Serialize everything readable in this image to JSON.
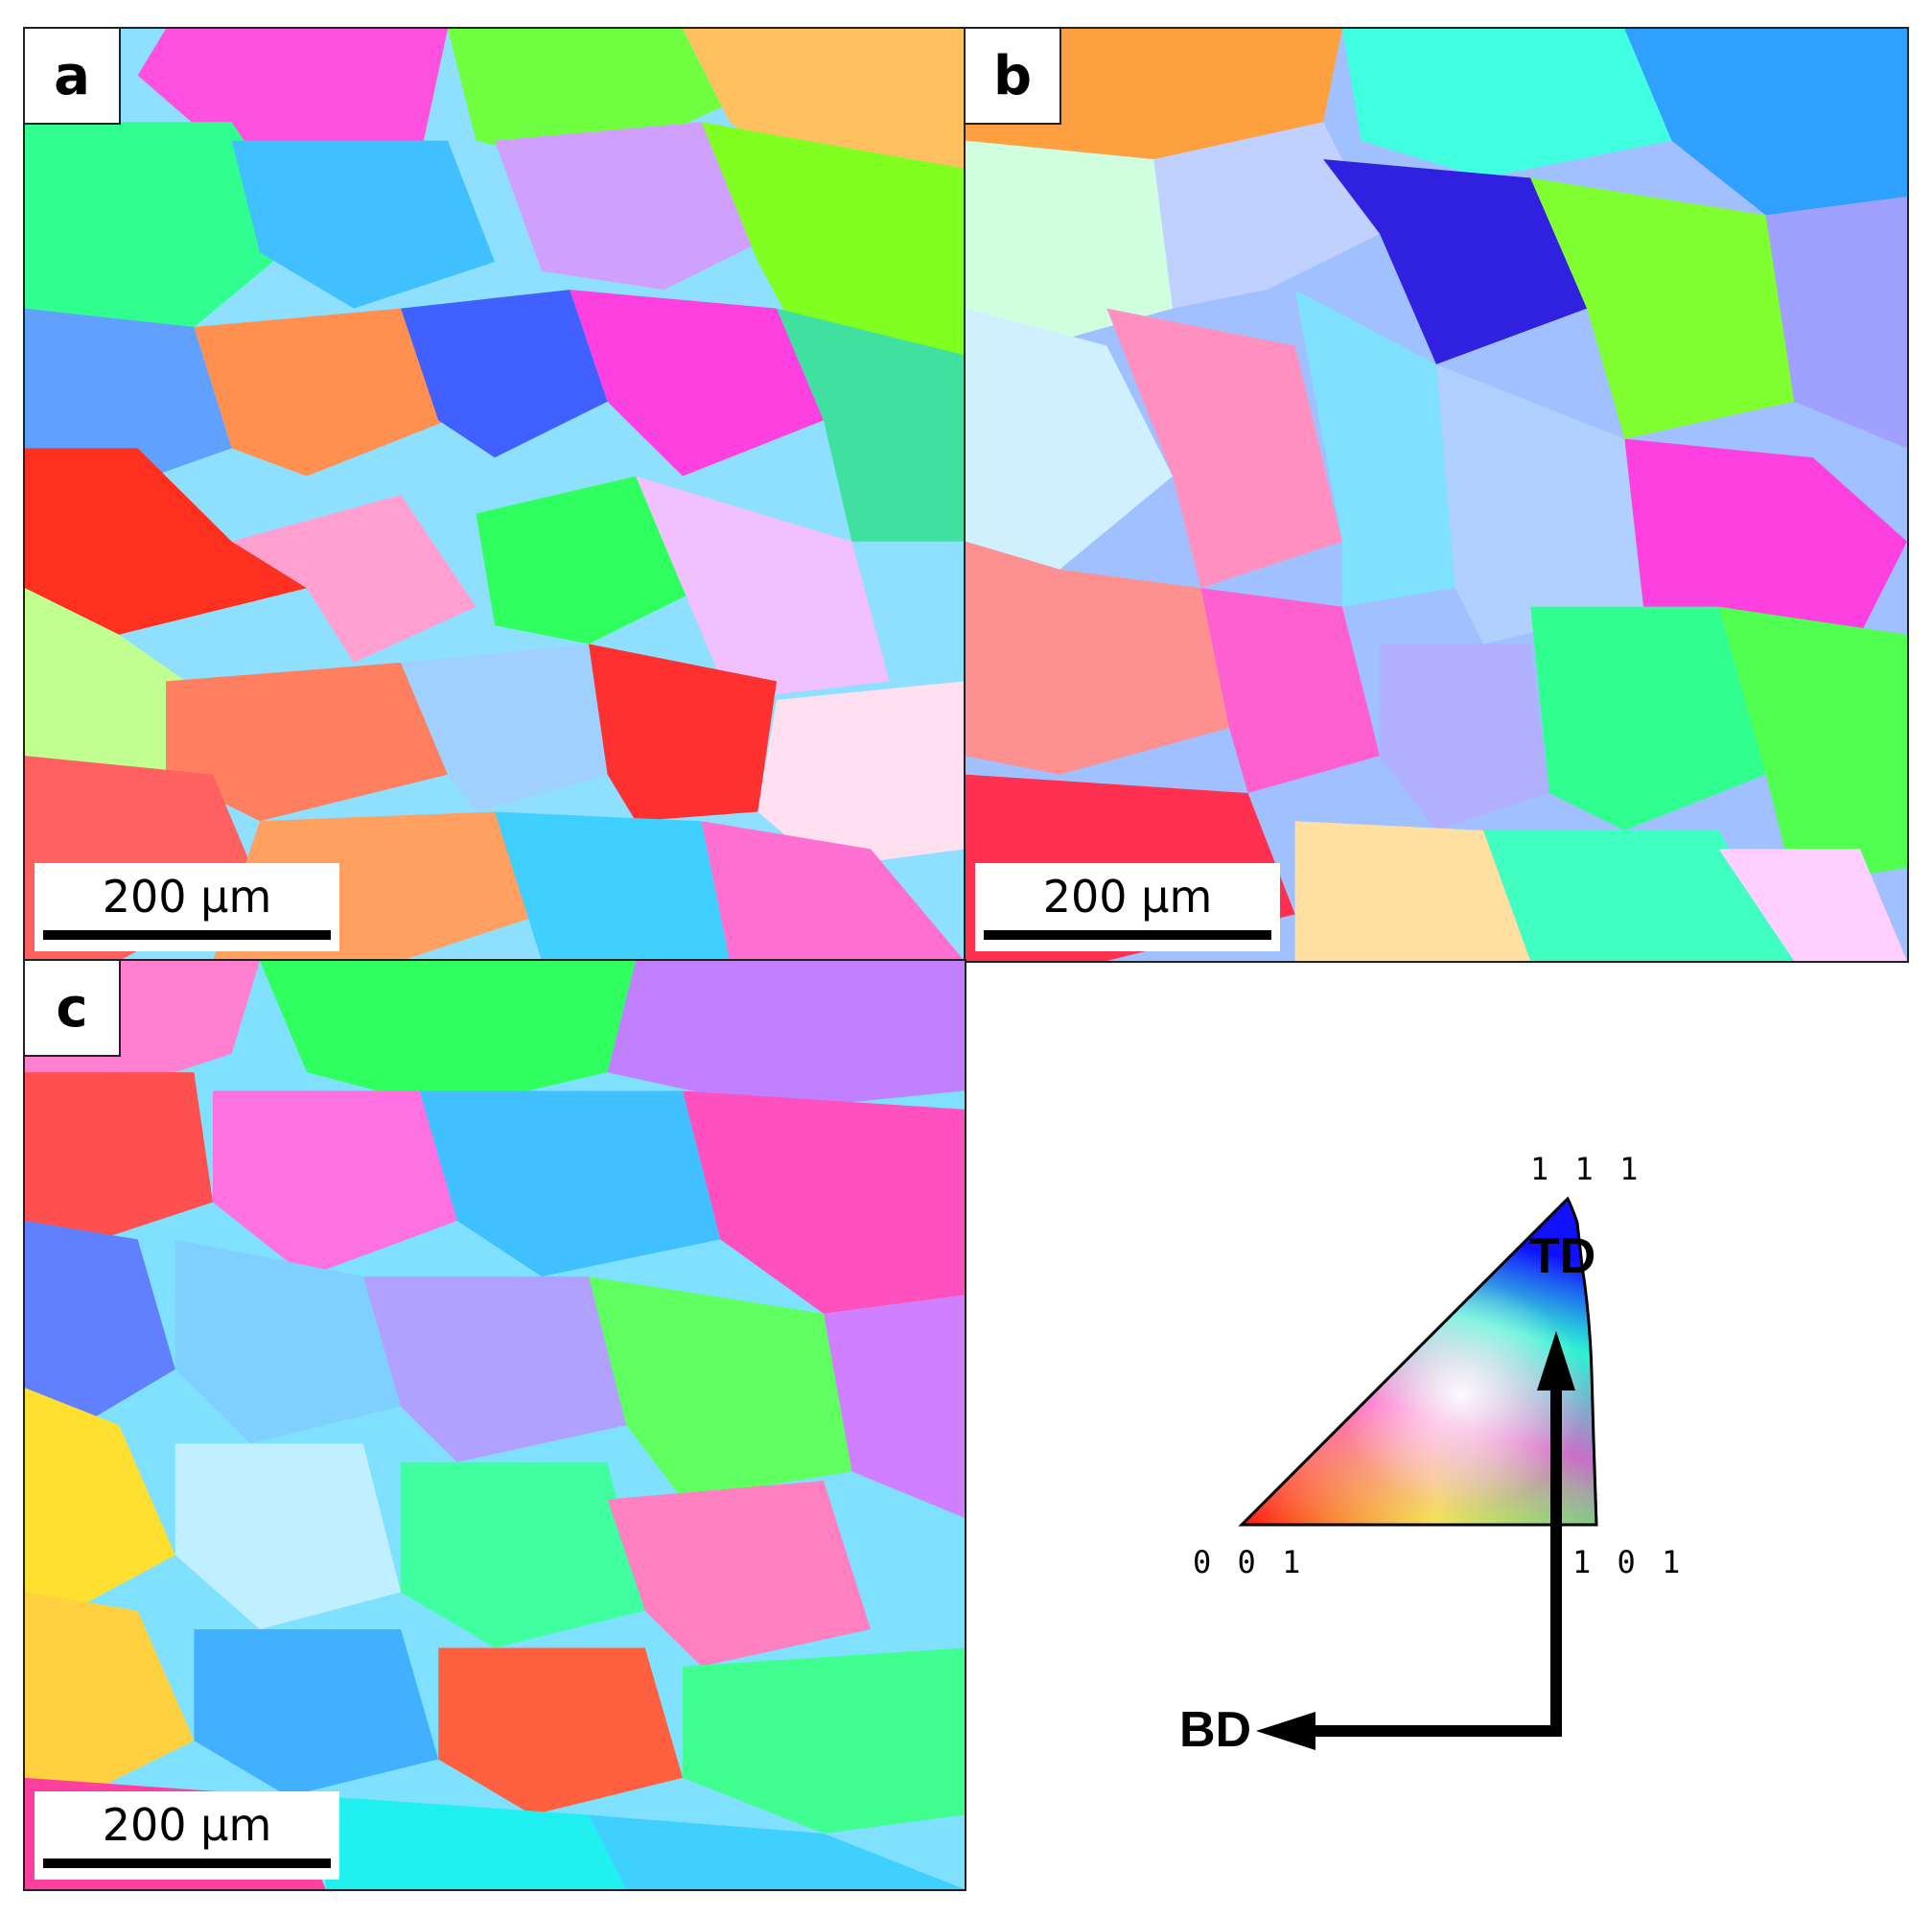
{
  "panels": [
    {
      "letter": "a",
      "scale_label": "200 μm"
    },
    {
      "letter": "b",
      "scale_label": "200 μm"
    },
    {
      "letter": "c",
      "scale_label": "200 μm"
    }
  ],
  "legend": {
    "corner_111": "1 1 1",
    "corner_001": "0 0 1",
    "corner_101": "1 0 1",
    "axis_vertical": "TD",
    "axis_horizontal": "BD"
  },
  "colors": {
    "red_001": "#ff2020",
    "green_101": "#20ff40",
    "blue_111": "#3030ff",
    "magenta": "#ff40d0",
    "cyan": "#20f0f0",
    "yellow": "#f0f020",
    "lavender": "#c0a0ff",
    "pink": "#ff80c0"
  }
}
